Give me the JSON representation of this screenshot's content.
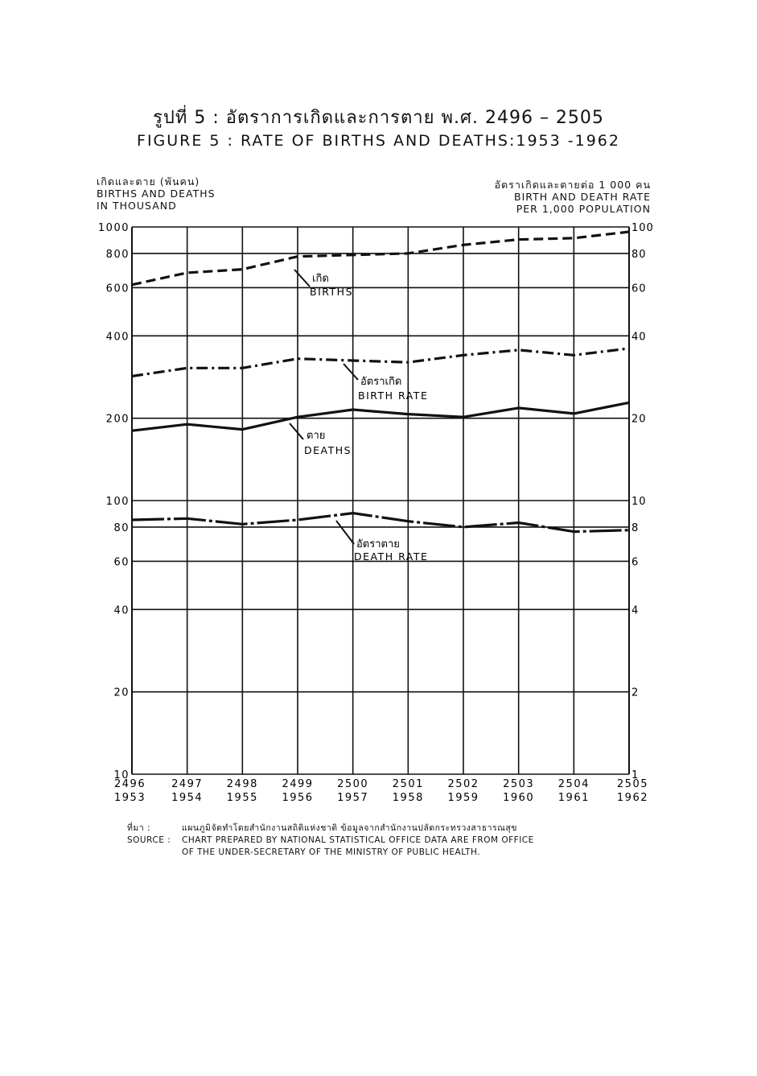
{
  "header": {
    "title_th": "รูปที่ 5 : อัตราการเกิดและการตาย พ.ศ. 2496 – 2505",
    "title_en": "FIGURE 5 : RATE OF BIRTHS AND DEATHS:1953 -1962"
  },
  "left_axis_label": {
    "th": "เกิดและตาย (พันคน)",
    "en1": "BIRTHS AND DEATHS",
    "en2": "IN THOUSAND"
  },
  "right_axis_label": {
    "th": "อัตราเกิดและตายต่อ 1 000 คน",
    "en1": "BIRTH AND DEATH RATE",
    "en2": "PER 1,000 POPULATION"
  },
  "source": {
    "label_th": "ที่มา :",
    "text_th": "แผนภูมิจัดทำโดยสำนักงานสถิติแห่งชาติ ข้อมูลจากสำนักงานปลัดกระทรวงสาธารณสุข",
    "label_en": "SOURCE :",
    "text_en1": "CHART PREPARED BY NATIONAL STATISTICAL OFFICE DATA ARE FROM OFFICE",
    "text_en2": "OF THE UNDER-SECRETARY OF THE MINISTRY OF PUBLIC HEALTH."
  },
  "chart_data": {
    "type": "line",
    "yscale": "log",
    "grid": true,
    "x_categories_be": [
      "2496",
      "2497",
      "2498",
      "2499",
      "2500",
      "2501",
      "2502",
      "2503",
      "2504",
      "2505"
    ],
    "x_categories_ad": [
      "1953",
      "1954",
      "1955",
      "1956",
      "1957",
      "1958",
      "1959",
      "1960",
      "1961",
      "1962"
    ],
    "left_axis": {
      "ylim": [
        10,
        1000
      ],
      "ticks": [
        "1000",
        "800",
        "600",
        "400",
        "200",
        "100",
        "80",
        "60",
        "40",
        "20",
        "10"
      ]
    },
    "right_axis": {
      "ylim": [
        1,
        100
      ],
      "ticks": [
        "100",
        "80",
        "60",
        "40",
        "20",
        "10",
        "8",
        "6",
        "4",
        "2",
        "1"
      ]
    },
    "series": [
      {
        "name_th": "เกิด",
        "name_en": "BIRTHS",
        "axis": "left",
        "style": "dashed",
        "values": [
          615,
          680,
          700,
          780,
          790,
          800,
          860,
          900,
          910,
          960
        ]
      },
      {
        "name_th": "อัตราเกิด",
        "name_en": "BIRTH RATE",
        "axis": "right",
        "style": "dash-dot",
        "values": [
          28.5,
          30.5,
          30.5,
          33,
          32.5,
          32,
          34,
          35.5,
          34,
          36
        ]
      },
      {
        "name_th": "ตาย",
        "name_en": "DEATHS",
        "axis": "left",
        "style": "solid",
        "values": [
          180,
          190,
          182,
          202,
          215,
          207,
          202,
          218,
          208,
          228
        ]
      },
      {
        "name_th": "อัตราตาย",
        "name_en": "DEATH RATE",
        "axis": "right",
        "style": "solid-dash",
        "values": [
          8.5,
          8.6,
          8.2,
          8.5,
          9.0,
          8.4,
          8.0,
          8.3,
          7.7,
          7.8
        ]
      }
    ]
  }
}
